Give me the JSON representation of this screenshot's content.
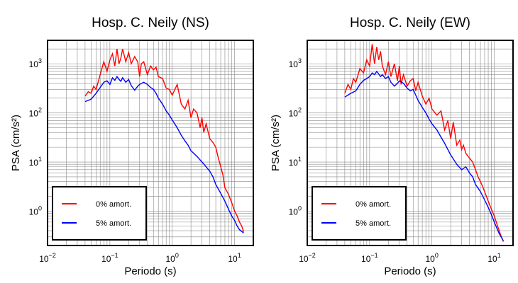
{
  "chart_data": [
    {
      "type": "line",
      "title": "Hosp. C. Neily (NS)",
      "xlabel": "Periodo (s)",
      "ylabel": "PSA (cm/s²)",
      "xscale": "log",
      "yscale": "log",
      "xlim": [
        0.01,
        20
      ],
      "ylim": [
        0.2,
        3000
      ],
      "x_ticks": [
        {
          "base": "10",
          "exp": "−2"
        },
        {
          "base": "10",
          "exp": "−1"
        },
        {
          "base": "10",
          "exp": "0"
        },
        {
          "base": "10",
          "exp": "1"
        }
      ],
      "y_ticks": [
        {
          "base": "10",
          "exp": "0"
        },
        {
          "base": "10",
          "exp": "1"
        },
        {
          "base": "10",
          "exp": "2"
        },
        {
          "base": "10",
          "exp": "3"
        }
      ],
      "grid": true,
      "legend_position": "bottom-left",
      "series": [
        {
          "name": "0% amort.",
          "color": "#ff0000",
          "x": [
            0.04,
            0.045,
            0.05,
            0.055,
            0.06,
            0.07,
            0.08,
            0.09,
            0.1,
            0.11,
            0.12,
            0.13,
            0.14,
            0.15,
            0.16,
            0.18,
            0.2,
            0.22,
            0.25,
            0.28,
            0.3,
            0.32,
            0.35,
            0.4,
            0.45,
            0.5,
            0.55,
            0.6,
            0.7,
            0.8,
            0.9,
            1.0,
            1.2,
            1.4,
            1.6,
            1.8,
            2.0,
            2.2,
            2.5,
            2.8,
            3.0,
            3.2,
            3.5,
            4.0,
            4.5,
            5.0,
            5.5,
            6.0,
            6.5,
            7.0,
            8.0,
            9.0,
            10,
            11,
            12,
            13,
            14
          ],
          "y": [
            220,
            270,
            250,
            350,
            300,
            600,
            1100,
            700,
            1200,
            1600,
            900,
            2000,
            1000,
            1300,
            2000,
            1100,
            1700,
            1000,
            1400,
            1100,
            550,
            1000,
            1100,
            600,
            900,
            750,
            850,
            550,
            500,
            320,
            300,
            230,
            380,
            150,
            120,
            180,
            80,
            120,
            100,
            50,
            80,
            40,
            60,
            30,
            25,
            20,
            12,
            8,
            5.5,
            3.0,
            2.2,
            1.5,
            1.0,
            0.8,
            0.6,
            0.5,
            0.38
          ]
        },
        {
          "name": "5% amort.",
          "color": "#0000ff",
          "x": [
            0.04,
            0.05,
            0.06,
            0.07,
            0.08,
            0.09,
            0.1,
            0.11,
            0.12,
            0.13,
            0.14,
            0.15,
            0.16,
            0.18,
            0.2,
            0.22,
            0.25,
            0.28,
            0.3,
            0.35,
            0.4,
            0.45,
            0.5,
            0.55,
            0.6,
            0.7,
            0.8,
            0.9,
            1.0,
            1.2,
            1.4,
            1.6,
            1.8,
            2.0,
            2.5,
            3.0,
            3.5,
            4.0,
            4.5,
            5.0,
            6.0,
            7.0,
            8.0,
            9.0,
            10,
            11,
            12,
            14
          ],
          "y": [
            170,
            190,
            250,
            330,
            420,
            450,
            380,
            520,
            460,
            550,
            480,
            440,
            520,
            420,
            480,
            360,
            290,
            350,
            380,
            420,
            380,
            330,
            300,
            250,
            200,
            150,
            110,
            90,
            72,
            50,
            35,
            27,
            22,
            17,
            13,
            10,
            8,
            6.5,
            5,
            3.5,
            2.3,
            1.6,
            1.1,
            0.8,
            0.65,
            0.5,
            0.42,
            0.36
          ]
        }
      ]
    },
    {
      "type": "line",
      "title": "Hosp. C. Neily (EW)",
      "xlabel": "Periodo (s)",
      "ylabel": "PSA (cm/s²)",
      "xscale": "log",
      "yscale": "log",
      "xlim": [
        0.01,
        20
      ],
      "ylim": [
        0.2,
        3000
      ],
      "x_ticks": [
        {
          "base": "10",
          "exp": "−2"
        },
        {
          "base": "10",
          "exp": "−1"
        },
        {
          "base": "10",
          "exp": "0"
        },
        {
          "base": "10",
          "exp": "1"
        }
      ],
      "y_ticks": [
        {
          "base": "10",
          "exp": "0"
        },
        {
          "base": "10",
          "exp": "1"
        },
        {
          "base": "10",
          "exp": "2"
        },
        {
          "base": "10",
          "exp": "3"
        }
      ],
      "grid": true,
      "legend_position": "bottom-left",
      "series": [
        {
          "name": "0% amort.",
          "color": "#ff0000",
          "x": [
            0.04,
            0.045,
            0.05,
            0.055,
            0.06,
            0.07,
            0.08,
            0.09,
            0.1,
            0.11,
            0.12,
            0.13,
            0.14,
            0.15,
            0.16,
            0.18,
            0.2,
            0.22,
            0.25,
            0.28,
            0.3,
            0.32,
            0.35,
            0.4,
            0.45,
            0.5,
            0.55,
            0.6,
            0.7,
            0.8,
            0.9,
            1.0,
            1.2,
            1.4,
            1.6,
            1.8,
            2.0,
            2.2,
            2.5,
            2.8,
            3.0,
            3.2,
            3.5,
            4.0,
            4.5,
            5.0,
            5.5,
            6.0,
            6.5,
            7.0,
            8.0,
            9.0,
            10,
            11,
            12,
            13,
            14
          ],
          "y": [
            250,
            380,
            300,
            500,
            420,
            800,
            650,
            1200,
            900,
            2500,
            1000,
            2200,
            1200,
            1800,
            900,
            600,
            1100,
            550,
            1000,
            450,
            900,
            380,
            600,
            350,
            450,
            500,
            280,
            420,
            220,
            150,
            200,
            120,
            90,
            110,
            45,
            70,
            30,
            65,
            22,
            28,
            18,
            22,
            15,
            12,
            10,
            7,
            5,
            4,
            3.2,
            2.5,
            1.6,
            1.1,
            0.8,
            0.55,
            0.4,
            0.3,
            0.24
          ]
        },
        {
          "name": "5% amort.",
          "color": "#0000ff",
          "x": [
            0.04,
            0.05,
            0.06,
            0.07,
            0.08,
            0.09,
            0.1,
            0.11,
            0.12,
            0.13,
            0.14,
            0.15,
            0.16,
            0.18,
            0.2,
            0.22,
            0.25,
            0.28,
            0.3,
            0.35,
            0.4,
            0.45,
            0.5,
            0.55,
            0.6,
            0.7,
            0.8,
            0.9,
            1.0,
            1.2,
            1.4,
            1.6,
            1.8,
            2.0,
            2.5,
            3.0,
            3.5,
            4.0,
            4.5,
            5.0,
            6.0,
            7.0,
            8.0,
            9.0,
            10,
            11,
            12,
            14
          ],
          "y": [
            210,
            250,
            280,
            380,
            460,
            500,
            550,
            650,
            600,
            700,
            620,
            550,
            600,
            500,
            550,
            420,
            350,
            400,
            450,
            400,
            320,
            280,
            300,
            230,
            180,
            130,
            100,
            75,
            60,
            45,
            32,
            24,
            18,
            14,
            9,
            7,
            8,
            6,
            5,
            3.5,
            2.5,
            1.7,
            1.2,
            0.85,
            0.6,
            0.45,
            0.35,
            0.25
          ]
        }
      ]
    }
  ]
}
